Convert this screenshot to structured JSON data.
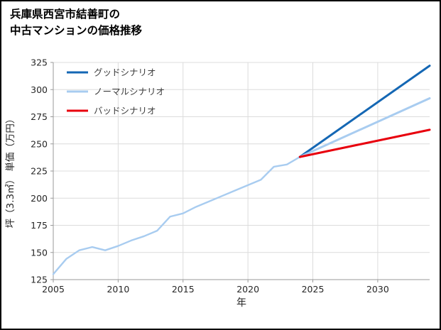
{
  "title": {
    "line1": "兵庫県西宮市結善町の",
    "line2": "中古マンションの価格推移"
  },
  "chart_data": {
    "type": "line",
    "title": "兵庫県西宮市結善町の中古マンションの価格推移",
    "xlabel": "年",
    "ylabel": "坪（3.3㎡） 単価（万円）",
    "xlim": [
      2005,
      2034
    ],
    "ylim": [
      125,
      325
    ],
    "xticks": [
      2005,
      2010,
      2015,
      2020,
      2025,
      2030
    ],
    "yticks": [
      125,
      150,
      175,
      200,
      225,
      250,
      275,
      300,
      325
    ],
    "grid": true,
    "legend_position": "upper-left",
    "colors": {
      "grid": "#dcdcdc",
      "axis": "#9a9a9a",
      "tick_text": "#262626",
      "legend_text": "#3c3c3c"
    },
    "history": {
      "color": "#a8ccf0",
      "x": [
        2005,
        2006,
        2007,
        2008,
        2009,
        2010,
        2011,
        2012,
        2013,
        2014,
        2015,
        2016,
        2017,
        2018,
        2019,
        2020,
        2021,
        2022,
        2023,
        2024
      ],
      "y": [
        130,
        144,
        152,
        155,
        152,
        156,
        161,
        165,
        170,
        183,
        186,
        192,
        197,
        202,
        207,
        212,
        217,
        229,
        231,
        238
      ]
    },
    "scenarios": [
      {
        "name": "グッドシナリオ",
        "color": "#1467b4",
        "x": [
          2024,
          2034
        ],
        "y": [
          238,
          322
        ]
      },
      {
        "name": "ノーマルシナリオ",
        "color": "#a8ccf0",
        "x": [
          2024,
          2034
        ],
        "y": [
          238,
          292
        ]
      },
      {
        "name": "バッドシナリオ",
        "color": "#e8000d",
        "x": [
          2024,
          2034
        ],
        "y": [
          238,
          263
        ]
      }
    ]
  }
}
